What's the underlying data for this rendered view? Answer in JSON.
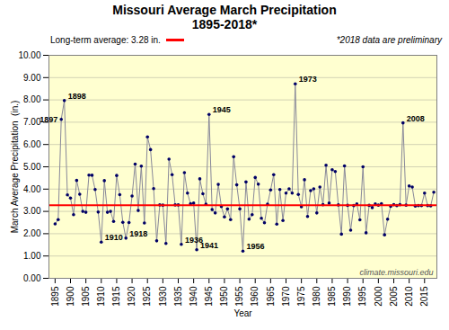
{
  "chart_data": {
    "type": "line",
    "title": "Missouri Average March Precipitation",
    "subtitle": "1895-2018*",
    "xlabel": "Year",
    "ylabel": "March Average Precipitation  (in.)",
    "x": [
      1895,
      1896,
      1897,
      1898,
      1899,
      1900,
      1901,
      1902,
      1903,
      1904,
      1905,
      1906,
      1907,
      1908,
      1909,
      1910,
      1911,
      1912,
      1913,
      1914,
      1915,
      1916,
      1917,
      1918,
      1919,
      1920,
      1921,
      1922,
      1923,
      1924,
      1925,
      1926,
      1927,
      1928,
      1929,
      1930,
      1931,
      1932,
      1933,
      1934,
      1935,
      1936,
      1937,
      1938,
      1939,
      1940,
      1941,
      1942,
      1943,
      1944,
      1945,
      1946,
      1947,
      1948,
      1949,
      1950,
      1951,
      1952,
      1953,
      1954,
      1955,
      1956,
      1957,
      1958,
      1959,
      1960,
      1961,
      1962,
      1963,
      1964,
      1965,
      1966,
      1967,
      1968,
      1969,
      1970,
      1971,
      1972,
      1973,
      1974,
      1975,
      1976,
      1977,
      1978,
      1979,
      1980,
      1981,
      1982,
      1983,
      1984,
      1985,
      1986,
      1987,
      1988,
      1989,
      1990,
      1991,
      1992,
      1993,
      1994,
      1995,
      1996,
      1997,
      1998,
      1999,
      2000,
      2001,
      2002,
      2003,
      2004,
      2005,
      2006,
      2007,
      2008,
      2009,
      2010,
      2011,
      2012,
      2013,
      2014,
      2015,
      2016,
      2017,
      2018
    ],
    "values": [
      2.44,
      2.63,
      7.13,
      7.97,
      3.74,
      3.6,
      2.85,
      4.39,
      3.77,
      3.0,
      2.96,
      4.63,
      4.62,
      3.98,
      2.97,
      1.62,
      4.38,
      2.96,
      3.0,
      2.55,
      4.61,
      3.75,
      2.51,
      1.8,
      2.5,
      3.69,
      5.12,
      3.04,
      5.03,
      2.48,
      6.34,
      5.77,
      4.02,
      1.68,
      3.29,
      3.28,
      1.56,
      5.34,
      4.65,
      3.29,
      3.29,
      1.52,
      4.74,
      3.82,
      3.34,
      3.37,
      1.28,
      4.46,
      3.79,
      3.32,
      7.35,
      3.08,
      2.93,
      4.21,
      3.22,
      2.75,
      3.11,
      2.63,
      5.45,
      4.19,
      3.11,
      1.22,
      4.32,
      2.65,
      2.85,
      4.52,
      4.22,
      2.69,
      2.49,
      3.32,
      3.96,
      4.65,
      2.43,
      3.98,
      2.59,
      3.82,
      4.01,
      3.82,
      8.72,
      3.76,
      3.21,
      4.42,
      2.77,
      3.93,
      4.01,
      2.93,
      4.09,
      3.3,
      5.07,
      3.37,
      4.87,
      4.79,
      3.29,
      1.98,
      5.04,
      3.27,
      2.16,
      3.26,
      3.33,
      2.62,
      5.0,
      2.04,
      3.27,
      3.17,
      3.33,
      3.28,
      3.34,
      1.95,
      2.65,
      3.23,
      3.3,
      3.26,
      3.3,
      6.97,
      3.28,
      4.14,
      4.09,
      3.24,
      3.26,
      3.26,
      3.82,
      3.26,
      3.25,
      3.86
    ],
    "color": "#888899",
    "marker": "o",
    "marker_color": "#000066",
    "background_color": "#FFFFD0",
    "xlim": [
      1893,
      2019
    ],
    "xticks": [
      1895,
      1900,
      1905,
      1910,
      1915,
      1920,
      1925,
      1930,
      1935,
      1940,
      1945,
      1950,
      1955,
      1960,
      1965,
      1970,
      1975,
      1980,
      1985,
      1990,
      1995,
      2000,
      2005,
      2010,
      2015
    ],
    "ylim": [
      0,
      10
    ],
    "yticks": [
      {
        "value": 0,
        "label": "0.00"
      },
      {
        "value": 1,
        "label": "1.00"
      },
      {
        "value": 2,
        "label": "2.00"
      },
      {
        "value": 3,
        "label": "3.00"
      },
      {
        "value": 4,
        "label": "4.00"
      },
      {
        "value": 5,
        "label": "5.00"
      },
      {
        "value": 6,
        "label": "6.00"
      },
      {
        "value": 7,
        "label": "7.00"
      },
      {
        "value": 8,
        "label": "8.00"
      },
      {
        "value": 9,
        "label": "9.00"
      },
      {
        "value": 10,
        "label": "10.00"
      }
    ],
    "grid": "y",
    "reference_line": {
      "y": 3.28,
      "label": "Long-term average: 3.28 in.",
      "color": "#FF0000"
    },
    "note": "*2018 data are preliminary",
    "watermark": "climate.missouri.edu",
    "annotations": [
      {
        "text": "1897",
        "x": 1897,
        "y": 7.13
      },
      {
        "text": "1898",
        "x": 1898,
        "y": 7.97
      },
      {
        "text": "1910",
        "x": 1910,
        "y": 1.62
      },
      {
        "text": "1918",
        "x": 1918,
        "y": 1.8
      },
      {
        "text": "1936",
        "x": 1936,
        "y": 1.52
      },
      {
        "text": "1941",
        "x": 1941,
        "y": 1.28
      },
      {
        "text": "1945",
        "x": 1945,
        "y": 7.35
      },
      {
        "text": "1956",
        "x": 1956,
        "y": 1.22
      },
      {
        "text": "1973",
        "x": 1973,
        "y": 8.72
      },
      {
        "text": "2008",
        "x": 2008,
        "y": 6.97
      }
    ]
  }
}
